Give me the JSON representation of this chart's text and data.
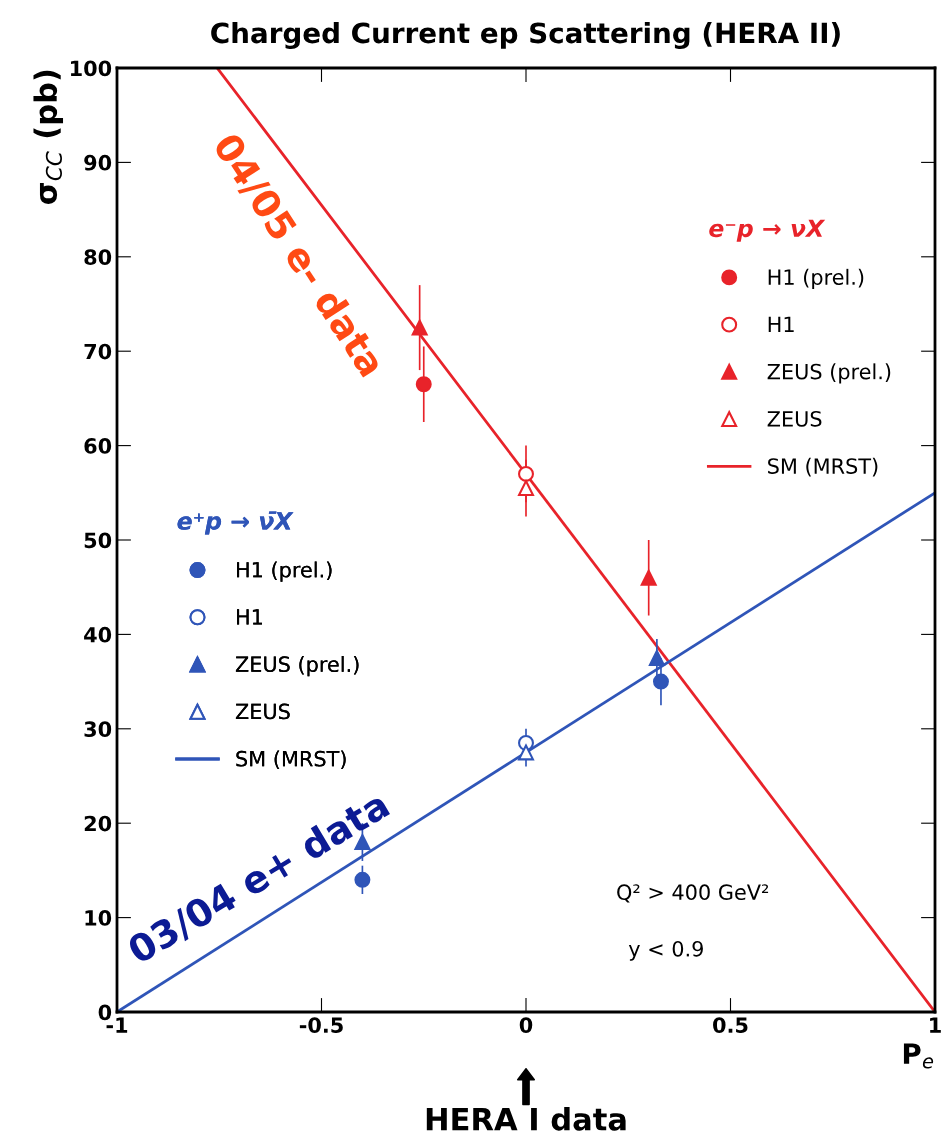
{
  "chart_data": {
    "type": "scatter",
    "title": "Charged Current ep Scattering (HERA II)",
    "xlabel": "P$_{e}$",
    "ylabel": "σ$_{CC}$ (pb)",
    "xlim": [
      -1,
      1
    ],
    "xticks": [
      -1,
      -0.5,
      0,
      0.5,
      1
    ],
    "ylim": [
      0,
      100
    ],
    "yticks": [
      0,
      10,
      20,
      30,
      40,
      50,
      60,
      70,
      80,
      90,
      100
    ],
    "grid": false,
    "legend": "right",
    "series": [
      {
        "name": "H1 (prel.)",
        "color": "#e8232a",
        "marker": "circle",
        "x": [
          -0.25
        ],
        "values": [
          66.5
        ],
        "errors": [
          4
        ]
      },
      {
        "name": "H1",
        "color": "#e8232a",
        "marker": "circle",
        "x": [
          0
        ],
        "values": [
          57
        ],
        "errors": [
          3
        ]
      },
      {
        "name": "ZEUS (prel.)",
        "color": "#e8232a",
        "marker": "triangle",
        "x": [
          -0.26,
          0.3
        ],
        "values": [
          72.5,
          46
        ],
        "errors": [
          4.5,
          4
        ]
      },
      {
        "name": "ZEUS",
        "color": "#e8232a",
        "marker": "triangle",
        "x": [
          0
        ],
        "values": [
          55.5
        ],
        "errors": [
          3
        ]
      },
      {
        "name": "SM (MRST)",
        "type": "line",
        "color": "#e8232a",
        "marker": "none",
        "x": [
          -0.755,
          1
        ],
        "values": [
          100,
          0
        ]
      },
      {
        "name": "H1 (prel.)",
        "color": "#2f55b8",
        "marker": "circle",
        "x": [
          -0.4,
          0.33
        ],
        "values": [
          14,
          35
        ],
        "errors": [
          1.5,
          2.5
        ]
      },
      {
        "name": "H1",
        "color": "#2f55b8",
        "marker": "circle",
        "x": [
          0
        ],
        "values": [
          28.5
        ],
        "errors": [
          1.5
        ]
      },
      {
        "name": "ZEUS (prel.)",
        "color": "#2f55b8",
        "marker": "triangle",
        "x": [
          -0.4,
          0.32
        ],
        "values": [
          18,
          37.5
        ],
        "errors": [
          2,
          2
        ]
      },
      {
        "name": "ZEUS",
        "color": "#2f55b8",
        "marker": "triangle",
        "x": [
          0
        ],
        "values": [
          27.5
        ],
        "errors": [
          1.5
        ]
      },
      {
        "name": "SM (MRST)",
        "type": "line",
        "color": "#2f55b8",
        "marker": "none",
        "x": [
          -1,
          1
        ],
        "values": [
          0,
          55
        ]
      }
    ],
    "annotations": [
      "e⁻p → νX",
      "e⁺p → ν̄X",
      "04/05 e- data",
      "03/04 e+ data",
      "Q² > 400 GeV²",
      "y < 0.9",
      "HERA I data"
    ]
  }
}
